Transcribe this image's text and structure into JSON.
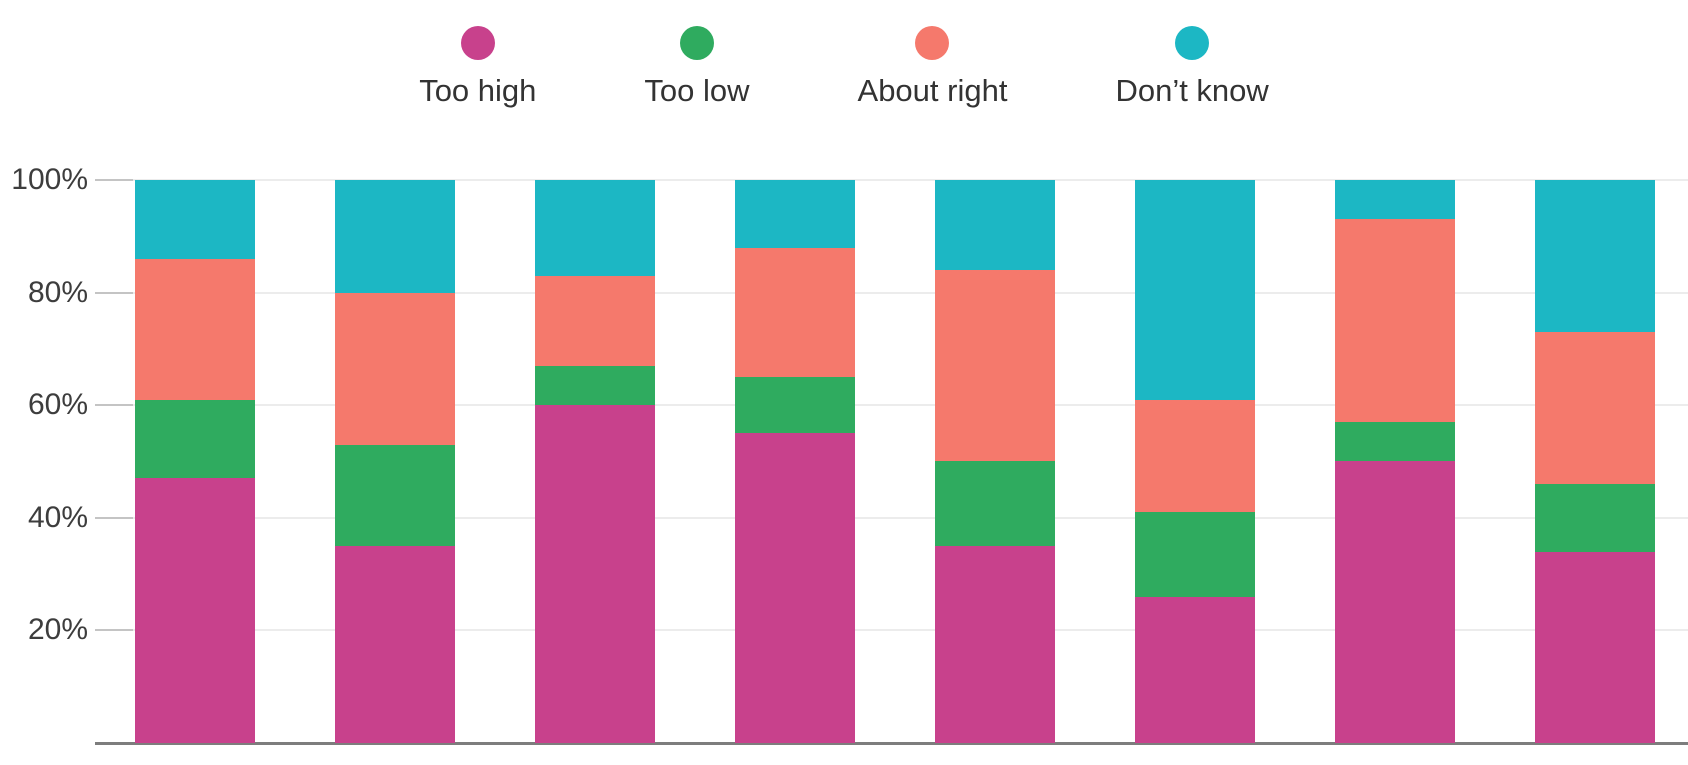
{
  "chart_data": {
    "type": "bar",
    "variant": "stacked-100-percent",
    "title": "",
    "xlabel": "",
    "ylabel": "",
    "x_axis_labels_visible": false,
    "n_bars": 8,
    "series": [
      {
        "name": "Too high",
        "color": "#c8418c",
        "values": [
          47,
          35,
          60,
          55,
          35,
          26,
          50,
          34
        ]
      },
      {
        "name": "Too low",
        "color": "#2fab5f",
        "values": [
          14,
          18,
          7,
          10,
          15,
          15,
          7,
          12
        ]
      },
      {
        "name": "About right",
        "color": "#f5796c",
        "values": [
          25,
          27,
          16,
          23,
          34,
          20,
          36,
          27
        ]
      },
      {
        "name": "Don’t know",
        "color": "#1cb7c4",
        "values": [
          14,
          20,
          17,
          12,
          16,
          39,
          7,
          27
        ]
      }
    ],
    "stack_order_bottom_to_top": [
      "Too high",
      "Too low",
      "About right",
      "Don’t know"
    ],
    "ylim": [
      0,
      100
    ],
    "ytick_labels": [
      "100%",
      "80%",
      "60%",
      "40%",
      "20%"
    ],
    "ytick_values": [
      100,
      80,
      60,
      40,
      20
    ],
    "grid": "horizontal",
    "legend_position": "top",
    "axis_line_color": "#7d7d7d",
    "gridline_color": "#ececec",
    "tick_label_color": "#3d3d3d"
  }
}
